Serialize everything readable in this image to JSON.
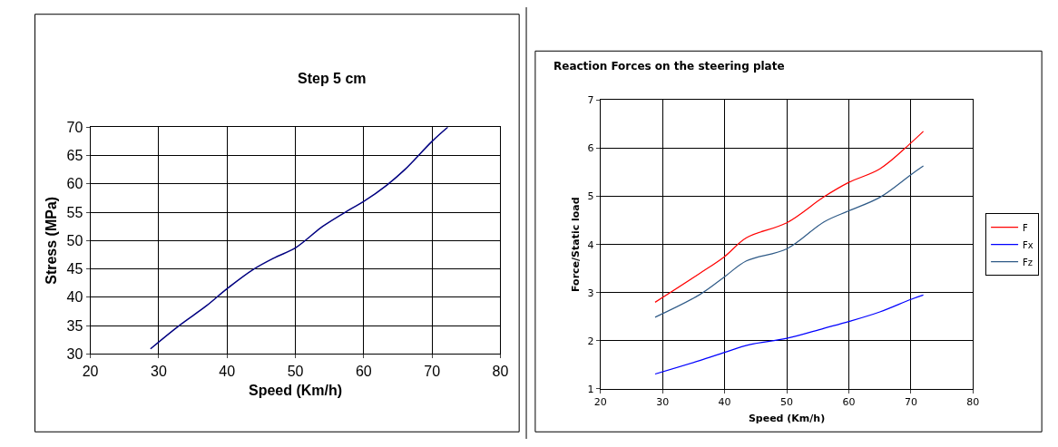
{
  "chart_data": [
    {
      "type": "line",
      "title": "Step 5 cm",
      "xlabel": "Speed (Km/h)",
      "ylabel": "Stress (MPa)",
      "xlim": [
        20,
        80
      ],
      "xticks": [
        20,
        30,
        40,
        50,
        60,
        70,
        80
      ],
      "ylim": [
        30,
        70
      ],
      "yticks": [
        30,
        35,
        40,
        45,
        50,
        55,
        60,
        65,
        70
      ],
      "grid": true,
      "legend": false,
      "series": [
        {
          "color": "#000080",
          "x": [
            28.8,
            33,
            37,
            40,
            43.7,
            47,
            50,
            54,
            58,
            60,
            63.4,
            66,
            70,
            72.3
          ],
          "values": [
            30.9,
            35,
            38.5,
            41.5,
            44.8,
            47,
            48.7,
            52.5,
            55.5,
            56.9,
            59.8,
            62.5,
            67.5,
            70
          ]
        }
      ]
    },
    {
      "type": "line",
      "title": "Reaction Forces on the steering plate",
      "xlabel": "Speed (Km/h)",
      "ylabel": "Force/Static load",
      "xlim": [
        20,
        80
      ],
      "xticks": [
        20,
        30,
        40,
        50,
        60,
        70,
        80
      ],
      "ylim": [
        1,
        7
      ],
      "yticks": [
        1,
        2,
        3,
        4,
        5,
        6,
        7
      ],
      "grid": true,
      "legend": "right",
      "series": [
        {
          "name": "F",
          "color": "#ff0000",
          "x": [
            28.8,
            36,
            40,
            43.5,
            50,
            56,
            60,
            65,
            70,
            72
          ],
          "values": [
            2.8,
            3.4,
            3.75,
            4.14,
            4.45,
            4.99,
            5.29,
            5.57,
            6.11,
            6.35
          ]
        },
        {
          "name": "Fx",
          "color": "#0000ff",
          "x": [
            28.8,
            36,
            40,
            44,
            50,
            56,
            60,
            65,
            70,
            72
          ],
          "values": [
            1.31,
            1.59,
            1.76,
            1.92,
            2.05,
            2.26,
            2.4,
            2.6,
            2.86,
            2.95
          ]
        },
        {
          "name": "Fz",
          "color": "#2e5a87",
          "x": [
            28.8,
            36,
            40,
            43.5,
            50,
            56,
            60,
            65,
            70,
            72
          ],
          "values": [
            2.49,
            2.96,
            3.33,
            3.66,
            3.91,
            4.47,
            4.7,
            4.98,
            5.45,
            5.63
          ]
        }
      ]
    }
  ]
}
